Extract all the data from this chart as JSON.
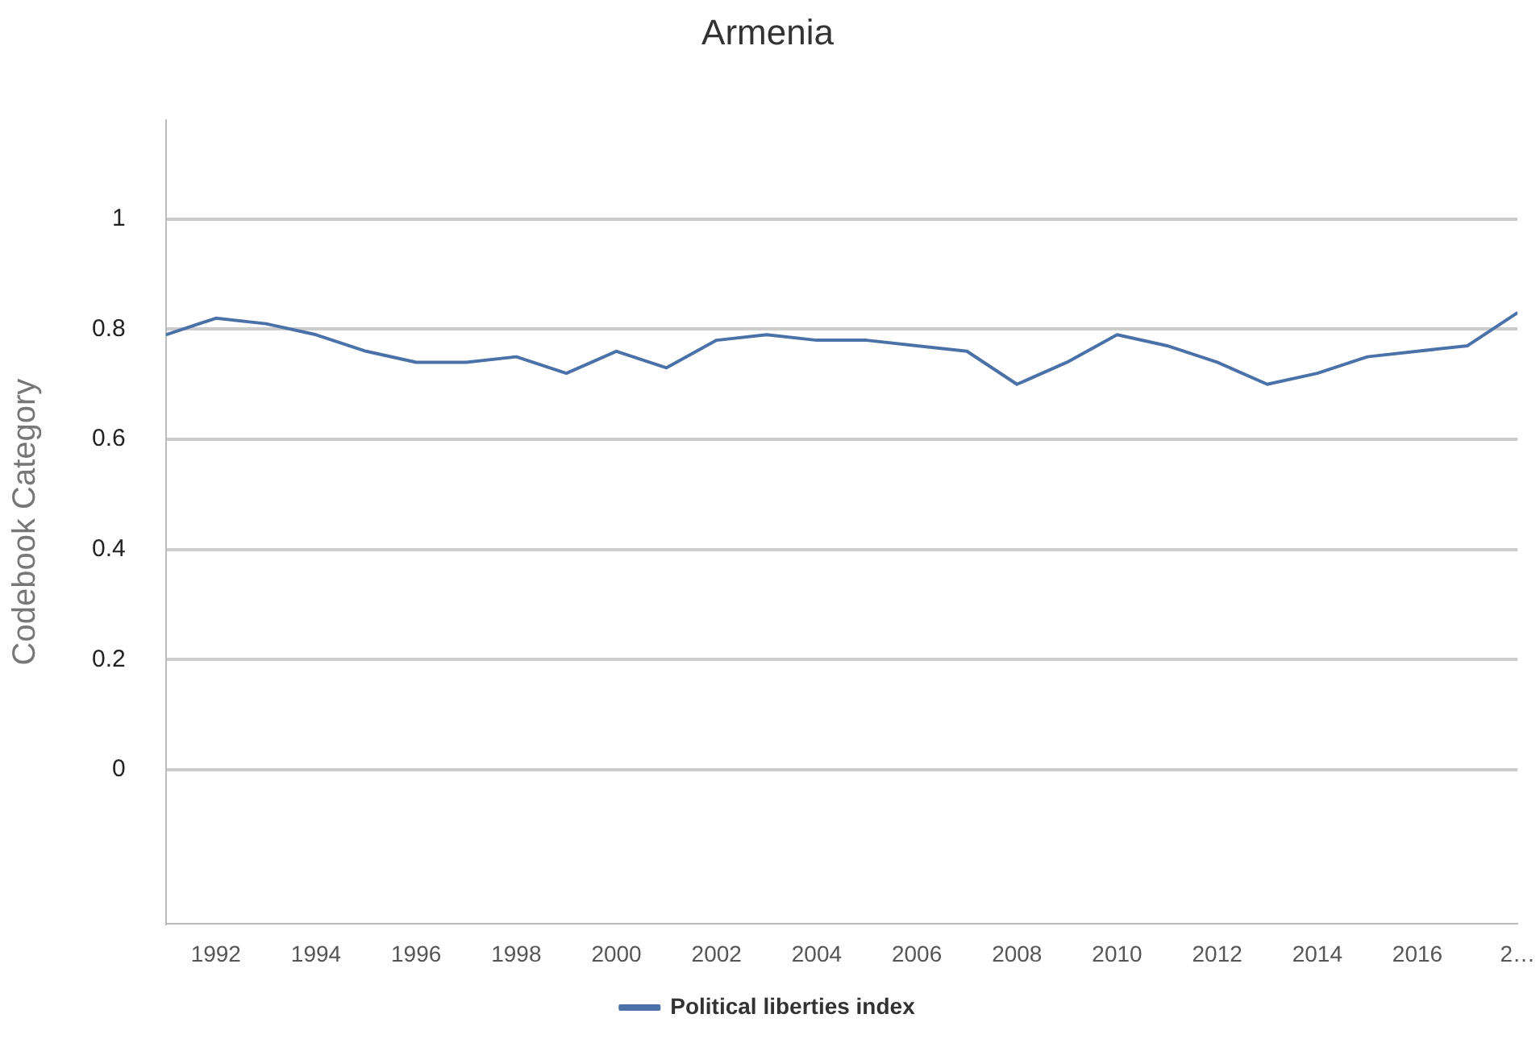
{
  "chart_data": {
    "type": "line",
    "title": "Armenia",
    "ylabel": "Codebook Category",
    "x": [
      1991,
      1992,
      1993,
      1994,
      1995,
      1996,
      1997,
      1998,
      1999,
      2000,
      2001,
      2002,
      2003,
      2004,
      2005,
      2006,
      2007,
      2008,
      2009,
      2010,
      2011,
      2012,
      2013,
      2014,
      2015,
      2016,
      2017,
      2018
    ],
    "series": [
      {
        "name": "Political liberties index",
        "color": "#4a72a8",
        "values": [
          0.79,
          0.82,
          0.81,
          0.79,
          0.76,
          0.74,
          0.74,
          0.75,
          0.72,
          0.76,
          0.73,
          0.78,
          0.79,
          0.78,
          0.78,
          0.77,
          0.76,
          0.7,
          0.74,
          0.79,
          0.77,
          0.74,
          0.7,
          0.72,
          0.75,
          0.76,
          0.77,
          0.83
        ]
      }
    ],
    "xlim": [
      1991,
      2018
    ],
    "xticks": [
      1992,
      1994,
      1996,
      1998,
      2000,
      2002,
      2004,
      2006,
      2008,
      2010,
      2012,
      2014,
      2016,
      {
        "value": 2018,
        "label": "2…"
      }
    ],
    "ylim": [
      -0.28,
      1.18
    ],
    "yticks": [
      0,
      0.2,
      0.4,
      0.6,
      0.8,
      1
    ],
    "grid": "y",
    "legend": "bottom",
    "marker": "none",
    "line_style": "solid"
  }
}
